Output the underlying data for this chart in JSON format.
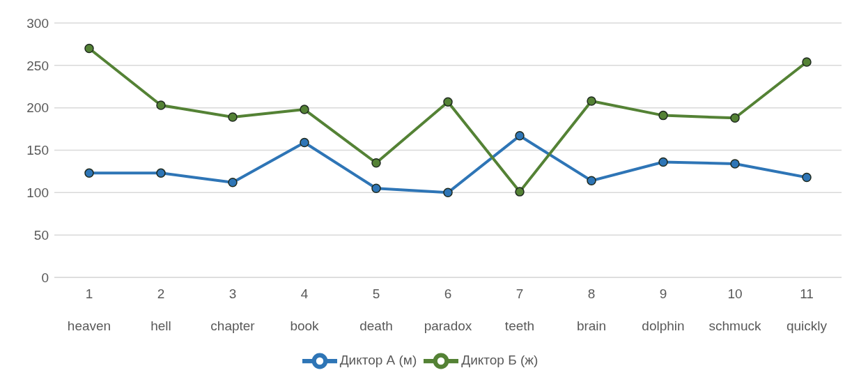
{
  "chart_data": {
    "type": "line",
    "categories": [
      "1\nheaven",
      "2\nhell",
      "3\nchapter",
      "4\nbook",
      "5\ndeath",
      "6\nparadox",
      "7\nteeth",
      "8\nbrain",
      "9\ndolphin",
      "10\nschmuck",
      "11\nquickly"
    ],
    "series": [
      {
        "name": "Диктор А (м)",
        "color": "#2e75b6",
        "values": [
          123,
          123,
          112,
          159,
          105,
          100,
          167,
          114,
          136,
          134,
          118
        ]
      },
      {
        "name": "Диктор Б (ж)",
        "color": "#548235",
        "values": [
          270,
          203,
          189,
          198,
          135,
          207,
          101,
          208,
          191,
          188,
          254
        ]
      }
    ],
    "ylim": [
      0,
      300
    ],
    "yticks": [
      0,
      50,
      100,
      150,
      200,
      250,
      300
    ],
    "grid": "y",
    "legend": "bottom",
    "marker": "circle",
    "line_style": "solid"
  }
}
